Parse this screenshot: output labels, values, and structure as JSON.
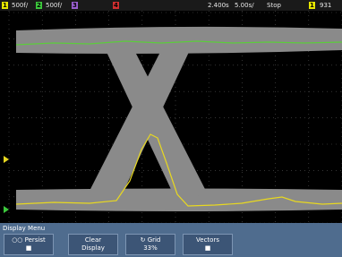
{
  "status_bar": {
    "channels": [
      {
        "number": "1",
        "scale": "500f/"
      },
      {
        "number": "2",
        "scale": "500f/"
      },
      {
        "number": "3"
      },
      {
        "number": "4"
      }
    ],
    "trigger_delay": "2.400s",
    "time_scale": "5.00s/",
    "run_state": "Stop",
    "trigger_source": "1",
    "trigger_level": "931"
  },
  "menu": {
    "title": "Display Menu",
    "softkeys": [
      {
        "label": "Persist"
      },
      {
        "label": "Clear",
        "sublabel": "Display"
      },
      {
        "label": "Grid",
        "sublabel": "33%"
      },
      {
        "label": "Vectors"
      }
    ]
  }
}
